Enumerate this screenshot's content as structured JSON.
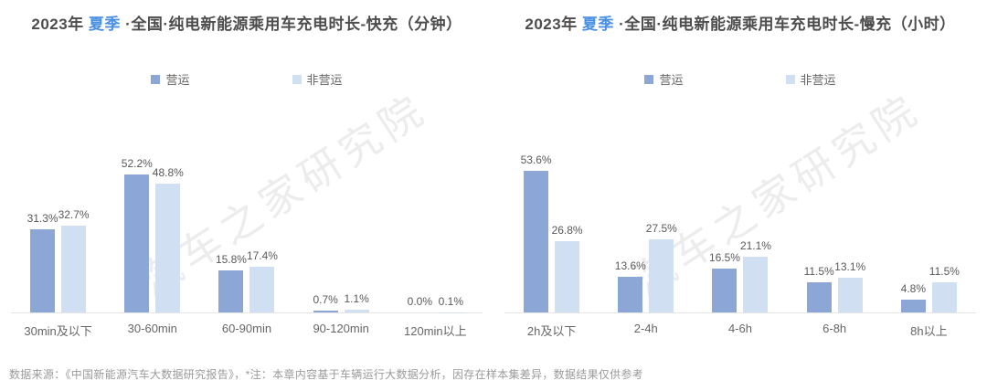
{
  "watermark": "汽车之家研究院",
  "footnote": "数据来源：《中国新能源汽车大数据研究报告》，*注：本章内容基于车辆运行大数据分析，因存在样本集差异，数据结果仅供参考",
  "colors": {
    "title_text": "#4D4D4D",
    "season_accent": "#4A90E2",
    "series_operating": "#8CA7D5",
    "series_non_operating": "#D0DFF2",
    "value_label": "#595959",
    "category_label": "#666666",
    "axis_line": "#E4E4E4",
    "footnote_text": "#9A9A9A",
    "background": "#FFFFFF"
  },
  "chart_data": [
    {
      "type": "bar",
      "title": "2023年 夏季 ·全国·纯电新能源乘用车充电时长-快充（分钟）",
      "title_parts": {
        "year": "2023年",
        "season": "夏季",
        "rest": "·全国·纯电新能源乘用车充电时长-快充（分钟）"
      },
      "categories": [
        "30min及以下",
        "30-60min",
        "60-90min",
        "90-120min",
        "120min以上"
      ],
      "series": [
        {
          "name": "营运",
          "color": "#8CA7D5",
          "values": [
            31.3,
            52.2,
            15.8,
            0.7,
            0.0
          ]
        },
        {
          "name": "非营运",
          "color": "#D0DFF2",
          "values": [
            32.7,
            48.8,
            17.4,
            1.1,
            0.1
          ]
        }
      ],
      "value_suffix": "%",
      "ylim": [
        0,
        60
      ],
      "grid": false,
      "legend_position": "top",
      "xlabel": "",
      "ylabel": ""
    },
    {
      "type": "bar",
      "title": "2023年 夏季 ·全国·纯电新能源乘用车充电时长-慢充（小时）",
      "title_parts": {
        "year": "2023年",
        "season": "夏季",
        "rest": "·全国·纯电新能源乘用车充电时长-慢充（小时）"
      },
      "categories": [
        "2h及以下",
        "2-4h",
        "4-6h",
        "6-8h",
        "8h以上"
      ],
      "series": [
        {
          "name": "营运",
          "color": "#8CA7D5",
          "values": [
            53.6,
            13.6,
            16.5,
            11.5,
            4.8
          ]
        },
        {
          "name": "非营运",
          "color": "#D0DFF2",
          "values": [
            26.8,
            27.5,
            21.1,
            13.1,
            11.5
          ]
        }
      ],
      "value_suffix": "%",
      "ylim": [
        0,
        60
      ],
      "grid": false,
      "legend_position": "top",
      "xlabel": "",
      "ylabel": ""
    }
  ]
}
